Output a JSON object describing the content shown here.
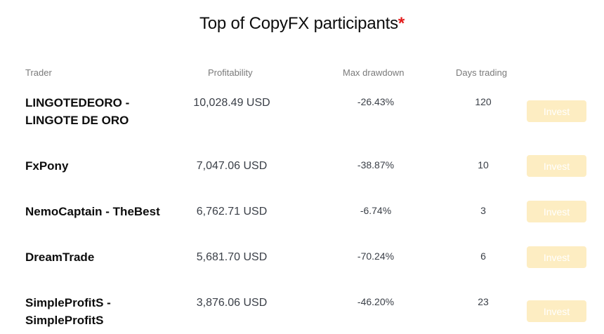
{
  "title": "Top of CopyFX participants",
  "title_asterisk": "*",
  "columns": {
    "trader": "Trader",
    "profitability": "Profitability",
    "max_drawdown": "Max drawdown",
    "days_trading": "Days trading"
  },
  "invest_label": "Invest",
  "rows": [
    {
      "trader": "LINGOTEDEORO - LINGOTE DE ORO",
      "profitability": "10,028.49 USD",
      "max_drawdown": "-26.43%",
      "days_trading": "120"
    },
    {
      "trader": "FxPony",
      "profitability": "7,047.06 USD",
      "max_drawdown": "-38.87%",
      "days_trading": "10"
    },
    {
      "trader": "NemoCaptain - TheBest",
      "profitability": "6,762.71 USD",
      "max_drawdown": "-6.74%",
      "days_trading": "3"
    },
    {
      "trader": "DreamTrade",
      "profitability": "5,681.70 USD",
      "max_drawdown": "-70.24%",
      "days_trading": "6"
    },
    {
      "trader": "SimpleProfitS - SimpleProfitS",
      "profitability": "3,876.06 USD",
      "max_drawdown": "-46.20%",
      "days_trading": "23"
    }
  ],
  "colors": {
    "invest_button_bg": "#fdedc2",
    "asterisk": "#e31b1b"
  }
}
